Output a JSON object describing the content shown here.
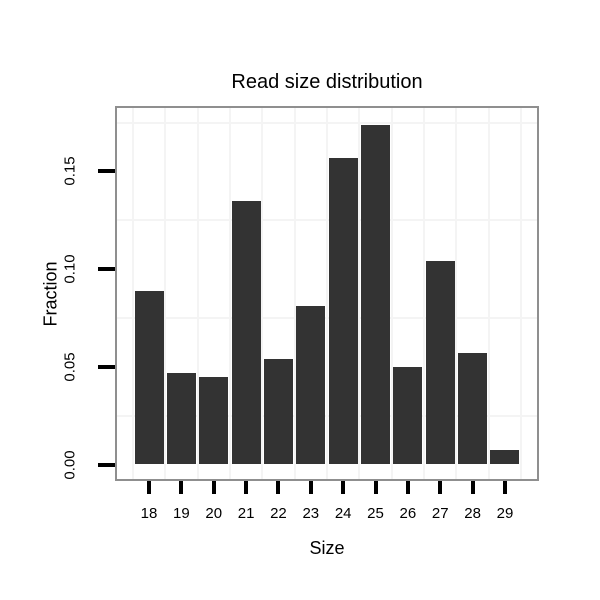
{
  "chart_data": {
    "type": "bar",
    "title": "Read size distribution",
    "xlabel": "Size",
    "ylabel": "Fraction",
    "categories": [
      "18",
      "19",
      "20",
      "21",
      "22",
      "23",
      "24",
      "25",
      "26",
      "27",
      "28",
      "29"
    ],
    "values": [
      0.089,
      0.047,
      0.045,
      0.135,
      0.054,
      0.081,
      0.157,
      0.174,
      0.05,
      0.104,
      0.057,
      0.0075
    ],
    "y_ticks": [
      0.0,
      0.05,
      0.1,
      0.15
    ],
    "y_tick_labels": [
      "0.00",
      "0.05",
      "0.10",
      "0.15"
    ],
    "ylim": [
      -0.0084,
      0.1824
    ],
    "minor_gridlines_y": [
      0.025,
      0.075,
      0.125,
      0.175
    ],
    "grid": "minor gridlines only, between categories and between y ticks",
    "legend": "none",
    "bar_color": "#333333",
    "panel_border_color": "#8f8f8f",
    "tick_color": "#000000",
    "gridline_color": "#f4f4f4",
    "text_color": "#000000",
    "background_color": "#ffffff"
  }
}
